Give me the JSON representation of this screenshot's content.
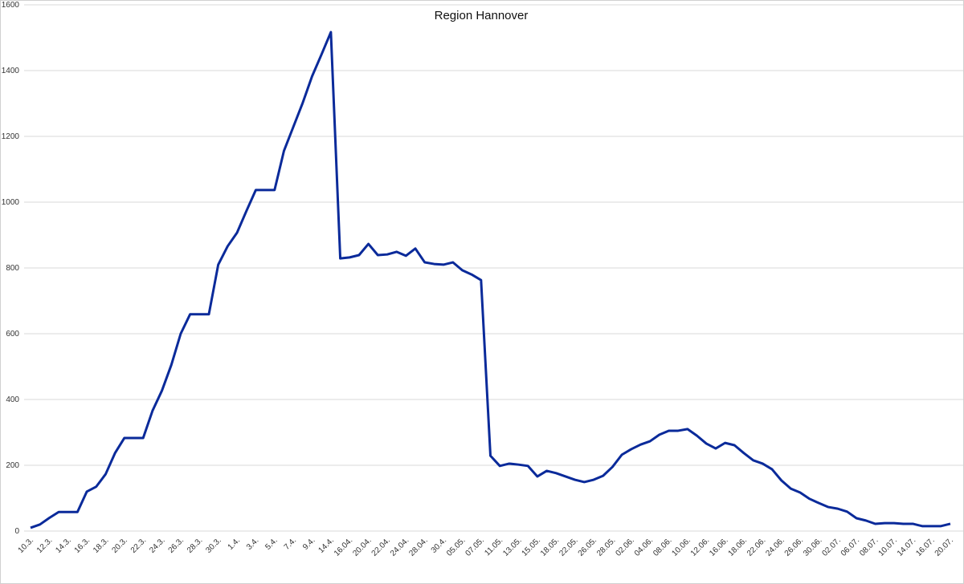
{
  "chart_data": {
    "type": "line",
    "title": "Region Hannover",
    "categories": [
      "10.3.",
      null,
      "12.3.",
      null,
      "14.3.",
      null,
      "16.3.",
      null,
      "18.3.",
      null,
      "20.3.",
      null,
      "22.3.",
      null,
      "24.3.",
      null,
      "26.3.",
      null,
      "28.3.",
      null,
      "30.3.",
      null,
      "1.4.",
      null,
      "3.4.",
      null,
      "5.4.",
      null,
      "7.4.",
      null,
      "9.4.",
      null,
      "14.4.",
      null,
      "16.04.",
      null,
      "20.04.",
      null,
      "22.04.",
      null,
      "24.04.",
      null,
      "28.04.",
      null,
      "30.4.",
      null,
      "05.05.",
      null,
      "07.05.",
      null,
      "11.05.",
      null,
      "13.05.",
      null,
      "15.05.",
      null,
      "18.05.",
      null,
      "22.05.",
      null,
      "26.05.",
      null,
      "28.05.",
      null,
      "02.06.",
      null,
      "04.06.",
      null,
      "08.06.",
      null,
      "10.06.",
      null,
      "12.06.",
      null,
      "16.06.",
      null,
      "18.06.",
      null,
      "22.06.",
      null,
      "24.06.",
      null,
      "26.06.",
      null,
      "30.06.",
      null,
      "02.07.",
      null,
      "06.07.",
      null,
      "08.07.",
      null,
      "10.07.",
      null,
      "14.07.",
      null,
      "16.07.",
      null,
      "20.07."
    ],
    "series": [
      {
        "name": "Region Hannover",
        "color": "#0a2a9a",
        "values": [
          10,
          20,
          40,
          58,
          58,
          58,
          120,
          135,
          173,
          237,
          283,
          283,
          283,
          366,
          427,
          505,
          600,
          659,
          659,
          659,
          810,
          866,
          907,
          973,
          1037,
          1037,
          1037,
          1156,
          1229,
          1302,
          1383,
          1449,
          1517,
          829,
          832,
          839,
          873,
          839,
          841,
          849,
          837,
          859,
          817,
          812,
          810,
          817,
          793,
          780,
          763,
          229,
          198,
          205,
          202,
          198,
          166,
          183,
          176,
          166,
          156,
          149,
          156,
          168,
          195,
          232,
          249,
          263,
          273,
          293,
          305,
          305,
          310,
          290,
          266,
          251,
          268,
          261,
          237,
          215,
          205,
          188,
          154,
          129,
          117,
          98,
          85,
          73,
          68,
          59,
          39,
          32,
          22,
          24,
          24,
          22,
          22,
          15,
          15,
          15,
          22
        ]
      }
    ],
    "ylim": [
      0,
      1600
    ],
    "yticks": [
      0,
      200,
      400,
      600,
      800,
      1000,
      1200,
      1400,
      1600
    ],
    "grid": true
  }
}
